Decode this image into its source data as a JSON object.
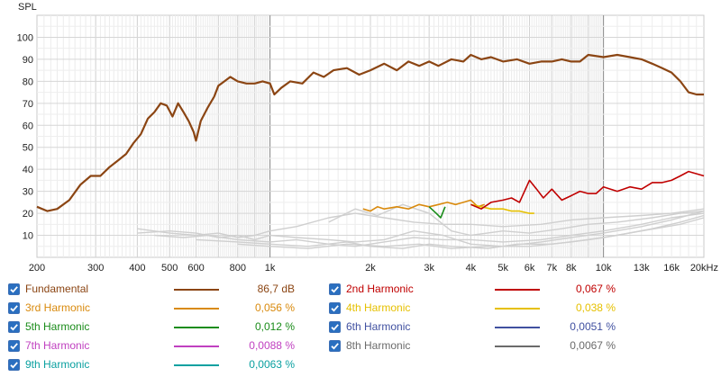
{
  "chart_data": {
    "type": "line",
    "ylabel": "SPL",
    "xscale": "log",
    "xlim": [
      200,
      20000
    ],
    "ylim": [
      0,
      110
    ],
    "yticks": [
      10,
      20,
      30,
      40,
      50,
      60,
      70,
      80,
      90,
      100
    ],
    "xticks": [
      {
        "v": 200,
        "label": "200"
      },
      {
        "v": 300,
        "label": "300"
      },
      {
        "v": 400,
        "label": "400"
      },
      {
        "v": 500,
        "label": "500"
      },
      {
        "v": 600,
        "label": "600"
      },
      {
        "v": 800,
        "label": "800"
      },
      {
        "v": 1000,
        "label": "1k"
      },
      {
        "v": 2000,
        "label": "2k"
      },
      {
        "v": 3000,
        "label": "3k"
      },
      {
        "v": 4000,
        "label": "4k"
      },
      {
        "v": 5000,
        "label": "5k"
      },
      {
        "v": 6000,
        "label": "6k"
      },
      {
        "v": 7000,
        "label": "7k"
      },
      {
        "v": 8000,
        "label": "8k"
      },
      {
        "v": 10000,
        "label": "10k"
      },
      {
        "v": 13000,
        "label": "13k"
      },
      {
        "v": 16000,
        "label": "16k"
      },
      {
        "v": 20000,
        "label": "20kHz"
      }
    ],
    "grid": true,
    "series": [
      {
        "name": "Fundamental",
        "color": "#8b4513",
        "points": [
          [
            200,
            23
          ],
          [
            215,
            21
          ],
          [
            230,
            22
          ],
          [
            250,
            26
          ],
          [
            270,
            33
          ],
          [
            290,
            37
          ],
          [
            310,
            37
          ],
          [
            330,
            41
          ],
          [
            350,
            44
          ],
          [
            370,
            47
          ],
          [
            390,
            52
          ],
          [
            410,
            56
          ],
          [
            430,
            63
          ],
          [
            450,
            66
          ],
          [
            470,
            70
          ],
          [
            490,
            69
          ],
          [
            510,
            64
          ],
          [
            530,
            70
          ],
          [
            550,
            66
          ],
          [
            570,
            62
          ],
          [
            590,
            57
          ],
          [
            600,
            53
          ],
          [
            620,
            62
          ],
          [
            650,
            68
          ],
          [
            680,
            73
          ],
          [
            700,
            78
          ],
          [
            730,
            80
          ],
          [
            760,
            82
          ],
          [
            800,
            80
          ],
          [
            850,
            79
          ],
          [
            900,
            79
          ],
          [
            950,
            80
          ],
          [
            1000,
            79
          ],
          [
            1030,
            74
          ],
          [
            1080,
            77
          ],
          [
            1150,
            80
          ],
          [
            1250,
            79
          ],
          [
            1350,
            84
          ],
          [
            1450,
            82
          ],
          [
            1550,
            85
          ],
          [
            1700,
            86
          ],
          [
            1850,
            83
          ],
          [
            2000,
            85
          ],
          [
            2200,
            88
          ],
          [
            2400,
            85
          ],
          [
            2600,
            89
          ],
          [
            2800,
            87
          ],
          [
            3000,
            89
          ],
          [
            3200,
            87
          ],
          [
            3500,
            90
          ],
          [
            3800,
            89
          ],
          [
            4000,
            92
          ],
          [
            4300,
            90
          ],
          [
            4600,
            91
          ],
          [
            5000,
            89
          ],
          [
            5500,
            90
          ],
          [
            6000,
            88
          ],
          [
            6500,
            89
          ],
          [
            7000,
            89
          ],
          [
            7500,
            90
          ],
          [
            8000,
            89
          ],
          [
            8500,
            89
          ],
          [
            9000,
            92
          ],
          [
            10000,
            91
          ],
          [
            11000,
            92
          ],
          [
            12000,
            91
          ],
          [
            13000,
            90
          ],
          [
            14000,
            88
          ],
          [
            15000,
            86
          ],
          [
            16000,
            84
          ],
          [
            17000,
            80
          ],
          [
            18000,
            75
          ],
          [
            19000,
            74
          ],
          [
            20000,
            74
          ]
        ]
      },
      {
        "name": "2nd Harmonic",
        "color": "#c00000",
        "points": [
          [
            4000,
            24
          ],
          [
            4300,
            22
          ],
          [
            4600,
            25
          ],
          [
            5000,
            26
          ],
          [
            5300,
            27
          ],
          [
            5600,
            25
          ],
          [
            6000,
            35
          ],
          [
            6300,
            31
          ],
          [
            6600,
            27
          ],
          [
            7000,
            31
          ],
          [
            7500,
            26
          ],
          [
            8000,
            28
          ],
          [
            8500,
            30
          ],
          [
            9000,
            29
          ],
          [
            9500,
            29
          ],
          [
            10000,
            32
          ],
          [
            11000,
            30
          ],
          [
            12000,
            32
          ],
          [
            13000,
            31
          ],
          [
            14000,
            34
          ],
          [
            15000,
            34
          ],
          [
            16000,
            35
          ],
          [
            17000,
            37
          ],
          [
            18000,
            39
          ],
          [
            19000,
            38
          ],
          [
            20000,
            37
          ]
        ]
      },
      {
        "name": "3rd Harmonic",
        "color": "#d98a0d",
        "points": [
          [
            1900,
            22
          ],
          [
            2000,
            21
          ],
          [
            2100,
            23
          ],
          [
            2200,
            22
          ],
          [
            2400,
            23
          ],
          [
            2600,
            22
          ],
          [
            2800,
            24
          ],
          [
            3000,
            23
          ],
          [
            3200,
            24
          ],
          [
            3400,
            25
          ],
          [
            3600,
            24
          ],
          [
            3800,
            25
          ],
          [
            4000,
            26
          ],
          [
            4200,
            23
          ],
          [
            4400,
            24
          ]
        ]
      },
      {
        "name": "4th Harmonic",
        "color": "#e6c000",
        "points": [
          [
            4000,
            24
          ],
          [
            4300,
            23
          ],
          [
            4600,
            22
          ],
          [
            5000,
            22
          ],
          [
            5300,
            21
          ],
          [
            5600,
            21
          ],
          [
            6000,
            20
          ],
          [
            6200,
            20
          ]
        ]
      },
      {
        "name": "5th Harmonic",
        "color": "#1a8c1a",
        "points": [
          [
            3000,
            23
          ],
          [
            3150,
            20
          ],
          [
            3250,
            18
          ],
          [
            3350,
            23
          ]
        ]
      },
      {
        "name": "6th Harmonic",
        "color": "#4050a0",
        "points": []
      },
      {
        "name": "7th Harmonic",
        "color": "#c040c0",
        "points": []
      },
      {
        "name": "8th Harmonic",
        "color": "#6b6b6b",
        "points": []
      },
      {
        "name": "9th Harmonic",
        "color": "#0aa0a0",
        "points": []
      }
    ],
    "noise_curves": [
      [
        [
          400,
          13
        ],
        [
          500,
          11
        ],
        [
          600,
          10
        ],
        [
          700,
          11
        ],
        [
          800,
          9
        ],
        [
          900,
          10
        ],
        [
          1000,
          12
        ],
        [
          1200,
          14
        ],
        [
          1500,
          18
        ],
        [
          1800,
          20
        ],
        [
          2200,
          18
        ],
        [
          2700,
          16
        ],
        [
          3300,
          15
        ],
        [
          4000,
          15
        ],
        [
          5000,
          14
        ],
        [
          6500,
          15
        ],
        [
          8000,
          17
        ],
        [
          10000,
          18
        ],
        [
          13000,
          19
        ],
        [
          16000,
          20
        ],
        [
          20000,
          22
        ]
      ],
      [
        [
          400,
          11
        ],
        [
          500,
          12
        ],
        [
          600,
          11
        ],
        [
          700,
          9
        ],
        [
          800,
          10
        ],
        [
          900,
          8
        ],
        [
          1000,
          10
        ],
        [
          1200,
          9
        ],
        [
          1500,
          8
        ],
        [
          1800,
          7
        ],
        [
          2200,
          8
        ],
        [
          2700,
          12
        ],
        [
          3300,
          10
        ],
        [
          4000,
          6
        ],
        [
          5000,
          5
        ],
        [
          6500,
          7
        ],
        [
          8000,
          9
        ],
        [
          10000,
          11
        ],
        [
          13000,
          14
        ],
        [
          16000,
          17
        ],
        [
          20000,
          21
        ]
      ],
      [
        [
          450,
          10
        ],
        [
          550,
          9
        ],
        [
          650,
          10
        ],
        [
          800,
          8
        ],
        [
          1000,
          7
        ],
        [
          1200,
          8
        ],
        [
          1500,
          6
        ],
        [
          1800,
          5
        ],
        [
          2200,
          7
        ],
        [
          2700,
          9
        ],
        [
          3300,
          8
        ],
        [
          4000,
          8
        ],
        [
          5000,
          7
        ],
        [
          6500,
          8
        ],
        [
          8000,
          10
        ],
        [
          10000,
          12
        ],
        [
          13000,
          15
        ],
        [
          16000,
          18
        ],
        [
          20000,
          20
        ]
      ],
      [
        [
          600,
          8
        ],
        [
          800,
          7
        ],
        [
          1000,
          6
        ],
        [
          1300,
          5
        ],
        [
          1700,
          7
        ],
        [
          2000,
          5
        ],
        [
          2500,
          4
        ],
        [
          3000,
          6
        ],
        [
          3500,
          5
        ],
        [
          4500,
          4
        ],
        [
          5500,
          6
        ],
        [
          7000,
          6
        ],
        [
          9000,
          8
        ],
        [
          11000,
          10
        ],
        [
          14000,
          13
        ],
        [
          17000,
          16
        ],
        [
          20000,
          19
        ]
      ],
      [
        [
          800,
          6
        ],
        [
          1000,
          5
        ],
        [
          1300,
          4
        ],
        [
          1700,
          6
        ],
        [
          2200,
          5
        ],
        [
          2800,
          6
        ],
        [
          3500,
          4
        ],
        [
          4500,
          5
        ],
        [
          6000,
          5
        ],
        [
          8000,
          7
        ],
        [
          10000,
          9
        ],
        [
          13000,
          12
        ],
        [
          17000,
          15
        ],
        [
          20000,
          18
        ]
      ],
      [
        [
          1500,
          16
        ],
        [
          1800,
          22
        ],
        [
          2100,
          19
        ],
        [
          2500,
          24
        ],
        [
          3000,
          20
        ],
        [
          3500,
          12
        ],
        [
          4000,
          10
        ],
        [
          5000,
          12
        ],
        [
          6000,
          11
        ],
        [
          7500,
          13
        ],
        [
          9000,
          15
        ],
        [
          11000,
          16
        ],
        [
          14000,
          18
        ],
        [
          17000,
          20
        ],
        [
          20000,
          21
        ]
      ]
    ]
  },
  "legend": [
    {
      "name": "Fundamental",
      "value": "86,7 dB",
      "color": "#8b4513"
    },
    {
      "name": "2nd Harmonic",
      "value": "0,067 %",
      "color": "#c00000"
    },
    {
      "name": "3rd Harmonic",
      "value": "0,056 %",
      "color": "#d98a0d"
    },
    {
      "name": "4th Harmonic",
      "value": "0,038 %",
      "color": "#e6c000"
    },
    {
      "name": "5th Harmonic",
      "value": "0,012 %",
      "color": "#1a8c1a"
    },
    {
      "name": "6th Harmonic",
      "value": "0,0051 %",
      "color": "#4050a0"
    },
    {
      "name": "7th Harmonic",
      "value": "0,0088 %",
      "color": "#c040c0"
    },
    {
      "name": "8th Harmonic",
      "value": "0,0067 %",
      "color": "#6b6b6b"
    },
    {
      "name": "9th Harmonic",
      "value": "0,0063 %",
      "color": "#0aa0a0"
    }
  ]
}
